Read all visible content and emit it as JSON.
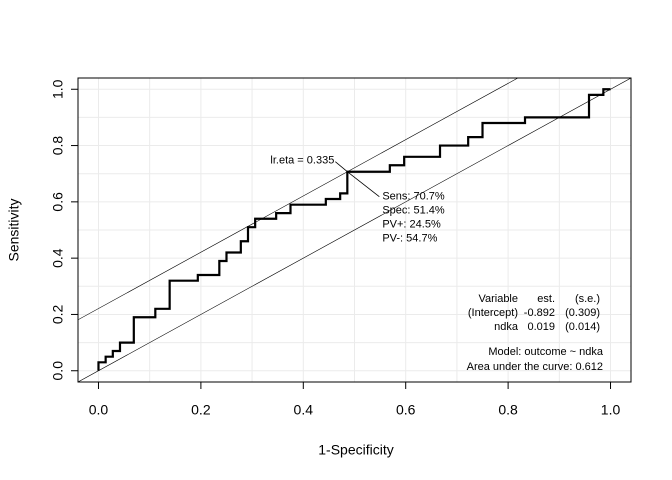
{
  "chart_data": {
    "type": "line",
    "x_label": "1-Specificity",
    "y_label": "Sensitivity",
    "xlim": [
      -0.04,
      1.04
    ],
    "ylim": [
      -0.04,
      1.04
    ],
    "xticks": [
      {
        "value": 0,
        "label": "0.0"
      },
      0.2,
      0.4,
      0.6,
      0.8,
      {
        "value": 1,
        "label": "1.0"
      }
    ],
    "yticks": [
      {
        "value": 0,
        "label": "0.0"
      },
      0.2,
      0.4,
      0.6,
      0.8,
      {
        "value": 1,
        "label": "1.0"
      }
    ],
    "grid": true,
    "xgrid": [
      0,
      0.1,
      0.2,
      0.3,
      0.4,
      0.5,
      0.6,
      0.7,
      0.8,
      0.9,
      1
    ],
    "ygrid": [
      0,
      0.1,
      0.2,
      0.3,
      0.4,
      0.5,
      0.6,
      0.7,
      0.8,
      0.9,
      1
    ],
    "color": "#000000",
    "x": [
      0,
      0,
      0.014,
      0.014,
      0.028,
      0.028,
      0.042,
      0.042,
      0.069,
      0.069,
      0.111,
      0.111,
      0.139,
      0.139,
      0.194,
      0.194,
      0.236,
      0.236,
      0.25,
      0.25,
      0.278,
      0.278,
      0.292,
      0.292,
      0.306,
      0.306,
      0.347,
      0.347,
      0.375,
      0.375,
      0.444,
      0.444,
      0.472,
      0.472,
      0.486,
      0.486,
      0.569,
      0.569,
      0.597,
      0.597,
      0.667,
      0.667,
      0.722,
      0.722,
      0.75,
      0.75,
      0.833,
      0.833,
      0.958,
      0.958,
      0.986,
      0.986,
      1
    ],
    "values": [
      0,
      0.03,
      0.03,
      0.05,
      0.05,
      0.07,
      0.07,
      0.1,
      0.1,
      0.19,
      0.19,
      0.22,
      0.22,
      0.32,
      0.32,
      0.34,
      0.34,
      0.39,
      0.39,
      0.42,
      0.42,
      0.46,
      0.46,
      0.51,
      0.51,
      0.54,
      0.54,
      0.56,
      0.56,
      0.59,
      0.59,
      0.61,
      0.61,
      0.63,
      0.63,
      0.707,
      0.707,
      0.73,
      0.73,
      0.76,
      0.76,
      0.8,
      0.8,
      0.83,
      0.83,
      0.88,
      0.88,
      0.9,
      0.9,
      0.98,
      0.98,
      1,
      1
    ],
    "reference_lines": [
      {
        "intercept": 0,
        "slope": 1
      },
      {
        "intercept": 0.221,
        "slope": 1
      }
    ],
    "optimal_point": {
      "x": 0.486,
      "y": 0.707
    },
    "optimal_label": "lr.eta = 0.335",
    "optimal_stats": [
      "Sens: 70.7%",
      "Spec: 51.4%",
      "PV+: 24.5%",
      "PV-: 54.7%"
    ],
    "model_table": [
      [
        "Variable",
        "est.",
        "(s.e.)"
      ],
      [
        "(Intercept)",
        "-0.892",
        "(0.309)"
      ],
      [
        "ndka",
        "0.019",
        "(0.014)"
      ]
    ],
    "model_text": "Model:  outcome ~ ndka",
    "auc_text": "Area under the curve: 0.612"
  }
}
